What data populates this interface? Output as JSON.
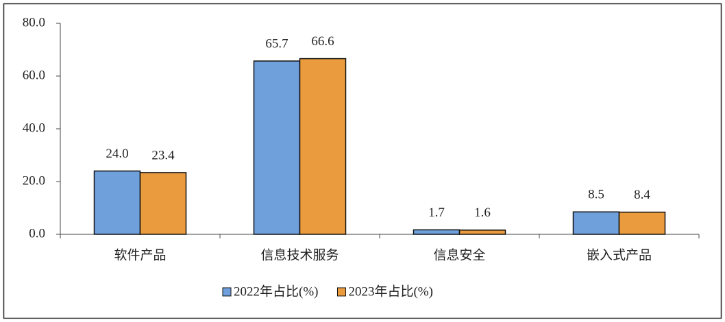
{
  "chart_data": {
    "type": "bar",
    "categories": [
      "软件产品",
      "信息技术服务",
      "信息安全",
      "嵌入式产品"
    ],
    "series": [
      {
        "name": "2022年占比(%)",
        "color": "#6fa0dc",
        "values": [
          24.0,
          65.7,
          1.7,
          8.5
        ],
        "value_labels": [
          "24.0",
          "65.7",
          "1.7",
          "8.5"
        ]
      },
      {
        "name": "2023年占比(%)",
        "color": "#e99b3d",
        "values": [
          23.4,
          66.6,
          1.6,
          8.4
        ],
        "value_labels": [
          "23.4",
          "66.6",
          "1.6",
          "8.4"
        ]
      }
    ],
    "ylim": [
      0,
      80
    ],
    "yticks": [
      {
        "value": 0,
        "label": "0.0"
      },
      {
        "value": 20,
        "label": "20.0"
      },
      {
        "value": 40,
        "label": "40.0"
      },
      {
        "value": 60,
        "label": "60.0"
      },
      {
        "value": 80,
        "label": "80.0"
      }
    ],
    "legend": "bottom"
  }
}
